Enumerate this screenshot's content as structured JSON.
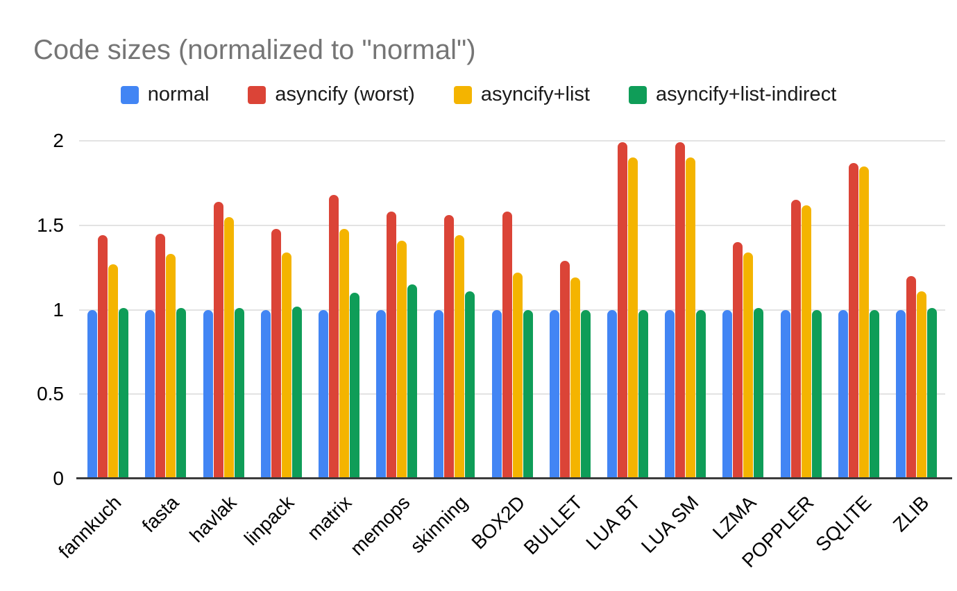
{
  "chart_data": {
    "type": "bar",
    "title": "Code sizes (normalized to \"normal\")",
    "xlabel": "",
    "ylabel": "",
    "categories": [
      "fannkuch",
      "fasta",
      "havlak",
      "linpack",
      "matrix",
      "memops",
      "skinning",
      "BOX2D",
      "BULLET",
      "LUA BT",
      "LUA SM",
      "LZMA",
      "POPPLER",
      "SQLITE",
      "ZLIB"
    ],
    "series": [
      {
        "name": "normal",
        "color": "#4285F4",
        "values": [
          1.0,
          1.0,
          1.0,
          1.0,
          1.0,
          1.0,
          1.0,
          1.0,
          1.0,
          1.0,
          1.0,
          1.0,
          1.0,
          1.0,
          1.0
        ]
      },
      {
        "name": "asyncify (worst)",
        "color": "#DB4437",
        "values": [
          1.44,
          1.45,
          1.64,
          1.48,
          1.68,
          1.58,
          1.56,
          1.58,
          1.29,
          1.99,
          1.99,
          1.4,
          1.65,
          1.87,
          1.2
        ]
      },
      {
        "name": "asyncify+list",
        "color": "#F4B400",
        "values": [
          1.27,
          1.33,
          1.55,
          1.34,
          1.48,
          1.41,
          1.44,
          1.22,
          1.19,
          1.9,
          1.9,
          1.34,
          1.62,
          1.85,
          1.11
        ]
      },
      {
        "name": "asyncify+list-indirect",
        "color": "#0F9D58",
        "values": [
          1.01,
          1.01,
          1.01,
          1.02,
          1.1,
          1.15,
          1.11,
          1.0,
          1.0,
          1.0,
          1.0,
          1.01,
          1.0,
          1.0,
          1.01
        ]
      }
    ],
    "y_axis": {
      "min": 0,
      "max": 2,
      "ticks": [
        0,
        0.5,
        1,
        1.5,
        2
      ]
    },
    "grid": true,
    "legend_position": "top",
    "styles": {
      "title_color": "#757575",
      "axis_label_color": "#000000",
      "gridline_color": "#e3e3e3",
      "axis_line_color": "#3b3b3b",
      "background": "#ffffff"
    }
  }
}
